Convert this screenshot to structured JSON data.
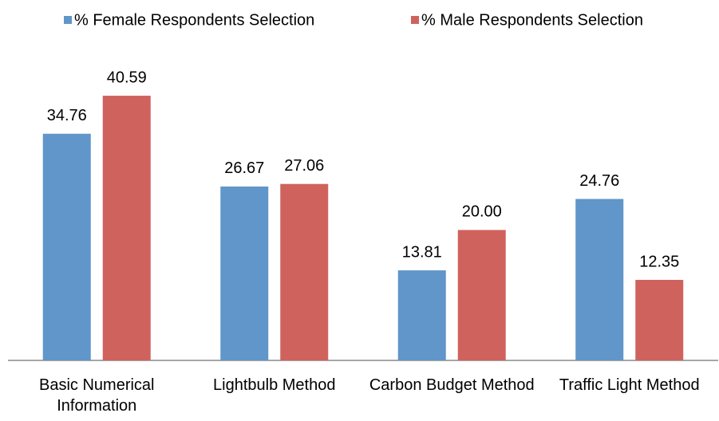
{
  "chart_data": {
    "type": "bar",
    "categories": [
      "Basic Numerical Information",
      "Lightbulb Method",
      "Carbon Budget Method",
      "Traffic Light Method"
    ],
    "series": [
      {
        "name": "% Female Respondents Selection",
        "color": "#6096c9",
        "values": [
          34.76,
          26.67,
          13.81,
          24.76
        ],
        "value_labels": [
          "34.76",
          "26.67",
          "13.81",
          "24.76"
        ]
      },
      {
        "name": "% Male Respondents Selection",
        "color": "#d0625e",
        "values": [
          40.59,
          27.06,
          20,
          12.35
        ],
        "value_labels": [
          "40.59",
          "27.06",
          "20.00",
          "12.35"
        ]
      }
    ],
    "ylim": [
      0,
      45
    ],
    "legend": "top"
  }
}
